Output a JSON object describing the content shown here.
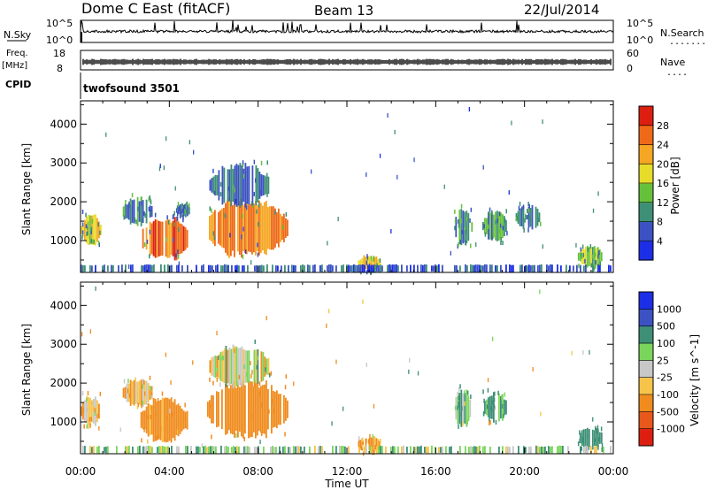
{
  "header": {
    "station": "Dome C East (fitACF)",
    "beam": "Beam 13",
    "date": "22/Jul/2014"
  },
  "sky_strip": {
    "left_label": "N.Sky",
    "right_label": "N.Search",
    "left_ticks": [
      "10^5",
      "10^0"
    ],
    "right_ticks": [
      "10^5",
      "10^0"
    ],
    "right_dots": "......."
  },
  "freq_strip": {
    "left_label_line1": "Freq.",
    "left_label_line2": "[MHz]",
    "left_ticks": [
      "18",
      "8"
    ],
    "right_label": "Nave",
    "right_ticks": [
      "60",
      "0"
    ],
    "right_dots": "...."
  },
  "cpid_strip": {
    "label": "CPID",
    "program": "twofsound 3501"
  },
  "x_axis": {
    "label": "Time UT",
    "ticks": [
      "00:00",
      "04:00",
      "08:00",
      "12:00",
      "16:00",
      "20:00",
      "00:00"
    ]
  },
  "colors": {
    "power_scale": [
      "#1c2ee6",
      "#3c52c2",
      "#3d8f75",
      "#66c13a",
      "#e8dc2a",
      "#f5a623",
      "#ee6a18",
      "#dc1f10"
    ],
    "velocity_scale": [
      "#dc1f10",
      "#e8581a",
      "#f08c1e",
      "#f7c44a",
      "#c8c8c8",
      "#7ad65a",
      "#3d8f75",
      "#3c52c2",
      "#1c2ee6"
    ]
  },
  "chart_data": [
    {
      "type": "heatmap",
      "panel": "power",
      "ylabel": "Slant Range [km]",
      "yticks": [
        1000,
        2000,
        3000,
        4000
      ],
      "ylim": [
        180,
        4600
      ],
      "xlim": [
        0,
        24
      ],
      "colorbar": {
        "label": "Power [dB]",
        "ticks": [
          "4",
          "8",
          "12",
          "16",
          "20",
          "24",
          "28"
        ],
        "range": [
          0,
          32
        ]
      },
      "regions": [
        {
          "t0": 0.0,
          "t1": 0.9,
          "r0": 900,
          "r1": 1650,
          "level": 18
        },
        {
          "t0": 1.9,
          "t1": 3.2,
          "r0": 1400,
          "r1": 2100,
          "level": 10
        },
        {
          "t0": 2.7,
          "t1": 4.8,
          "r0": 500,
          "r1": 1600,
          "level": 26
        },
        {
          "t0": 4.3,
          "t1": 4.9,
          "r0": 1600,
          "r1": 1950,
          "level": 8
        },
        {
          "t0": 5.7,
          "t1": 9.3,
          "r0": 600,
          "r1": 2050,
          "level": 24
        },
        {
          "t0": 5.8,
          "t1": 8.5,
          "r0": 1900,
          "r1": 2950,
          "level": 8
        },
        {
          "t0": 12.5,
          "t1": 13.5,
          "r0": 230,
          "r1": 620,
          "level": 20
        },
        {
          "t0": 16.8,
          "t1": 17.6,
          "r0": 900,
          "r1": 1800,
          "level": 10
        },
        {
          "t0": 18.1,
          "t1": 19.2,
          "r0": 1000,
          "r1": 1750,
          "level": 11
        },
        {
          "t0": 19.6,
          "t1": 20.7,
          "r0": 1300,
          "r1": 1900,
          "level": 8
        },
        {
          "t0": 22.4,
          "t1": 23.5,
          "r0": 320,
          "r1": 850,
          "level": 14
        },
        {
          "t0": 0.0,
          "t1": 24.0,
          "r0": 180,
          "r1": 380,
          "level": 6
        }
      ]
    },
    {
      "type": "heatmap",
      "panel": "velocity",
      "ylabel": "Slant Range [km]",
      "yticks": [
        1000,
        2000,
        3000,
        4000
      ],
      "ylim": [
        180,
        4600
      ],
      "xlim": [
        0,
        24
      ],
      "colorbar": {
        "label": "Velocity [m s^-1]",
        "ticks": [
          "-1000",
          "-500",
          "-100",
          "-25",
          "25",
          "100",
          "500",
          "1000"
        ]
      },
      "regions": [
        {
          "t0": 0.0,
          "t1": 0.9,
          "r0": 900,
          "r1": 1650,
          "v": -100
        },
        {
          "t0": 1.9,
          "t1": 3.2,
          "r0": 1400,
          "r1": 2100,
          "v": -100
        },
        {
          "t0": 2.7,
          "t1": 4.8,
          "r0": 500,
          "r1": 1600,
          "v": -200
        },
        {
          "t0": 5.7,
          "t1": 9.3,
          "r0": 600,
          "r1": 2050,
          "v": -300
        },
        {
          "t0": 5.8,
          "t1": 8.5,
          "r0": 1900,
          "r1": 2950,
          "v": 0
        },
        {
          "t0": 12.5,
          "t1": 13.5,
          "r0": 230,
          "r1": 620,
          "v": -150
        },
        {
          "t0": 16.8,
          "t1": 17.6,
          "r0": 900,
          "r1": 1800,
          "v": 80
        },
        {
          "t0": 18.1,
          "t1": 19.2,
          "r0": 1000,
          "r1": 1750,
          "v": 200
        },
        {
          "t0": 22.4,
          "t1": 23.5,
          "r0": 320,
          "r1": 850,
          "v": 300
        },
        {
          "t0": 0.0,
          "t1": 24.0,
          "r0": 180,
          "r1": 380,
          "v": 60
        }
      ]
    }
  ]
}
